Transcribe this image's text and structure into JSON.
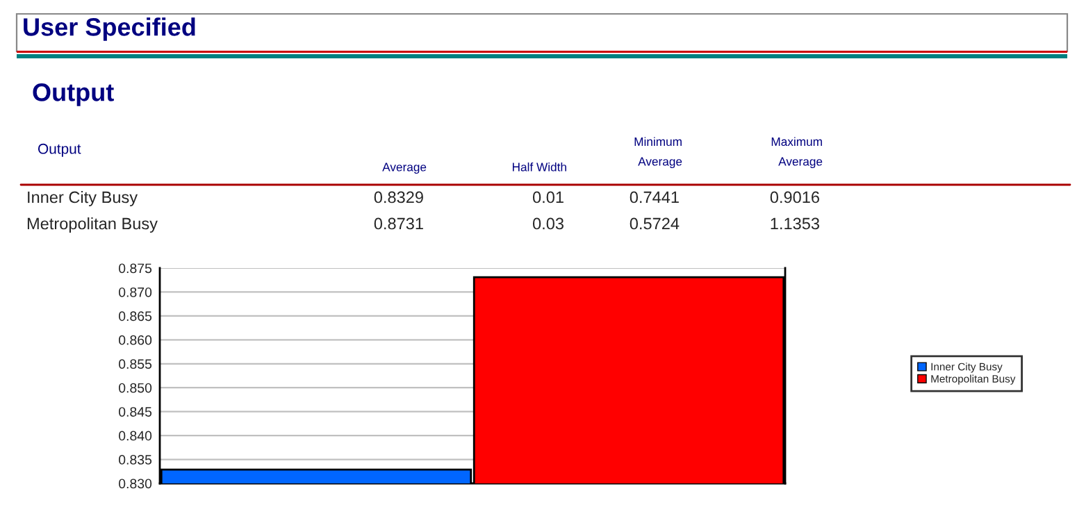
{
  "chart_data": {
    "type": "bar",
    "title": "User Specified",
    "subtitle": "Output",
    "annotations": [
      "Output",
      "Average",
      "Half Width",
      "Minimum\nAverage",
      "Maximum\nAverage",
      "Inner City Busy",
      "0.8329",
      "0.01",
      "0.7441",
      "0.9016",
      "Metropolitan Busy",
      "0.8731",
      "0.03",
      "0.5724",
      "1.1353"
    ],
    "categories": [
      null,
      null
    ],
    "series": [
      {
        "name": "Inner City Busy",
        "color": "#0066ff",
        "values": [
          0.8329,
          null
        ]
      },
      {
        "name": "Metropolitan Busy",
        "color": "#ff0000",
        "values": [
          null,
          0.8731
        ]
      }
    ],
    "ylim": [
      0.83,
      0.875
    ],
    "yticks": [
      {
        "value": 0.83,
        "label": "0.830"
      },
      {
        "value": 0.835,
        "label": "0.835"
      },
      {
        "value": 0.84,
        "label": "0.840"
      },
      {
        "value": 0.845,
        "label": "0.845"
      },
      {
        "value": 0.85,
        "label": "0.850"
      },
      {
        "value": 0.855,
        "label": "0.855"
      },
      {
        "value": 0.86,
        "label": "0.860"
      },
      {
        "value": 0.865,
        "label": "0.865"
      },
      {
        "value": 0.87,
        "label": "0.870"
      },
      {
        "value": 0.875,
        "label": "0.875"
      }
    ],
    "grid": "y",
    "legend": "right"
  }
}
